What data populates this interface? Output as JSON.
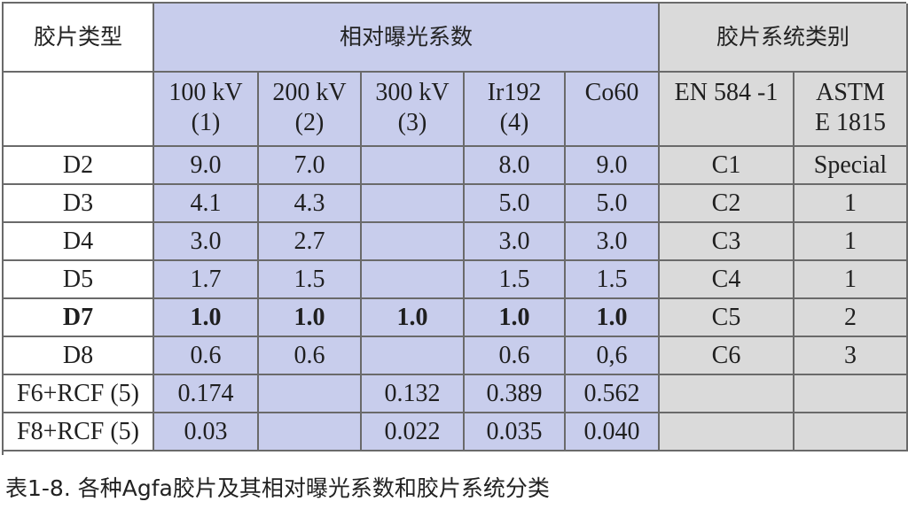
{
  "table": {
    "header": {
      "film_type": "胶片类型",
      "exposure_factor": "相对曝光系数",
      "film_system_class": "胶片系统类别"
    },
    "subheaders": [
      "100 kV\n(1)",
      "200 kV\n(2)",
      "300 kV\n(3)",
      "Ir192\n(4)",
      "Co60",
      "EN 584 -1",
      "ASTM\nE 1815"
    ],
    "rows": [
      {
        "film": "D2",
        "kv100": "9.0",
        "kv200": "7.0",
        "kv300": "",
        "ir192": "8.0",
        "co60": "9.0",
        "en584": "C1",
        "astm": "Special",
        "bold": false
      },
      {
        "film": "D3",
        "kv100": "4.1",
        "kv200": "4.3",
        "kv300": "",
        "ir192": "5.0",
        "co60": "5.0",
        "en584": "C2",
        "astm": "1",
        "bold": false
      },
      {
        "film": "D4",
        "kv100": "3.0",
        "kv200": "2.7",
        "kv300": "",
        "ir192": "3.0",
        "co60": "3.0",
        "en584": "C3",
        "astm": "1",
        "bold": false
      },
      {
        "film": "D5",
        "kv100": "1.7",
        "kv200": "1.5",
        "kv300": "",
        "ir192": "1.5",
        "co60": "1.5",
        "en584": "C4",
        "astm": "1",
        "bold": false
      },
      {
        "film": "D7",
        "kv100": "1.0",
        "kv200": "1.0",
        "kv300": "1.0",
        "ir192": "1.0",
        "co60": "1.0",
        "en584": "C5",
        "astm": "2",
        "bold": true
      },
      {
        "film": "D8",
        "kv100": "0.6",
        "kv200": "0.6",
        "kv300": "",
        "ir192": "0.6",
        "co60": "0,6",
        "en584": "C6",
        "astm": "3",
        "bold": false
      },
      {
        "film": "F6+RCF (5)",
        "kv100": "0.174",
        "kv200": "",
        "kv300": "0.132",
        "ir192": "0.389",
        "co60": "0.562",
        "en584": "",
        "astm": "",
        "bold": false
      },
      {
        "film": "F8+RCF (5)",
        "kv100": "0.03",
        "kv200": "",
        "kv300": "0.022",
        "ir192": "0.035",
        "co60": "0.040",
        "en584": "",
        "astm": "",
        "bold": false
      }
    ]
  },
  "caption": "表1-8. 各种Agfa胶片及其相对曝光系数和胶片系统分类",
  "colors": {
    "exposure_bg": "#c8cdec",
    "class_bg": "#dadada",
    "border": "#6a6a6a"
  }
}
